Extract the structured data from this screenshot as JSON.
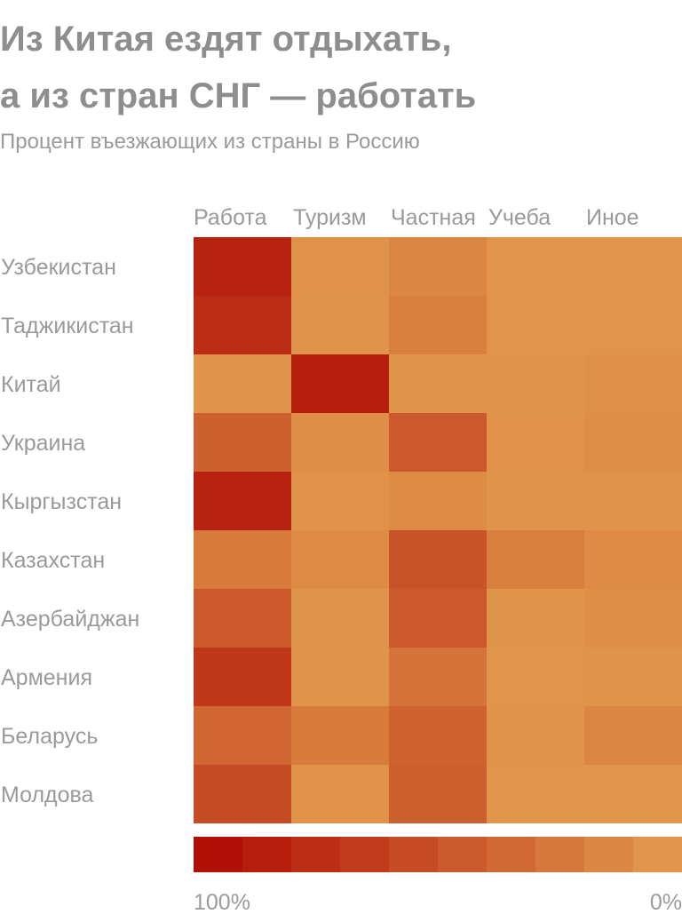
{
  "title_lines": [
    "Из Китая ездят отдыхать,",
    "а из стран СНГ — работать"
  ],
  "subtitle": "Процент въезжающих из страны в Россию",
  "chart_data": {
    "type": "heatmap",
    "columns": [
      "Работа",
      "Туризм",
      "Частная",
      "Учеба",
      "Иное"
    ],
    "rows": [
      "Узбекистан",
      "Таджикистан",
      "Китай",
      "Украина",
      "Кыргызстан",
      "Казахстан",
      "Азербайджан",
      "Армения",
      "Беларусь",
      "Молдова"
    ],
    "values": [
      [
        85,
        3,
        12,
        1,
        1
      ],
      [
        78,
        2,
        18,
        1,
        1
      ],
      [
        2,
        90,
        2,
        2,
        4
      ],
      [
        40,
        6,
        45,
        3,
        6
      ],
      [
        85,
        3,
        8,
        2,
        2
      ],
      [
        20,
        8,
        50,
        18,
        8
      ],
      [
        45,
        2,
        45,
        2,
        6
      ],
      [
        70,
        2,
        25,
        1,
        2
      ],
      [
        35,
        20,
        38,
        2,
        12
      ],
      [
        55,
        3,
        40,
        1,
        1
      ]
    ],
    "colorscale": {
      "min_label": "0%",
      "max_label": "100%",
      "min_color": "#e1964b",
      "max_color": "#b00f05",
      "steps": 10
    }
  }
}
